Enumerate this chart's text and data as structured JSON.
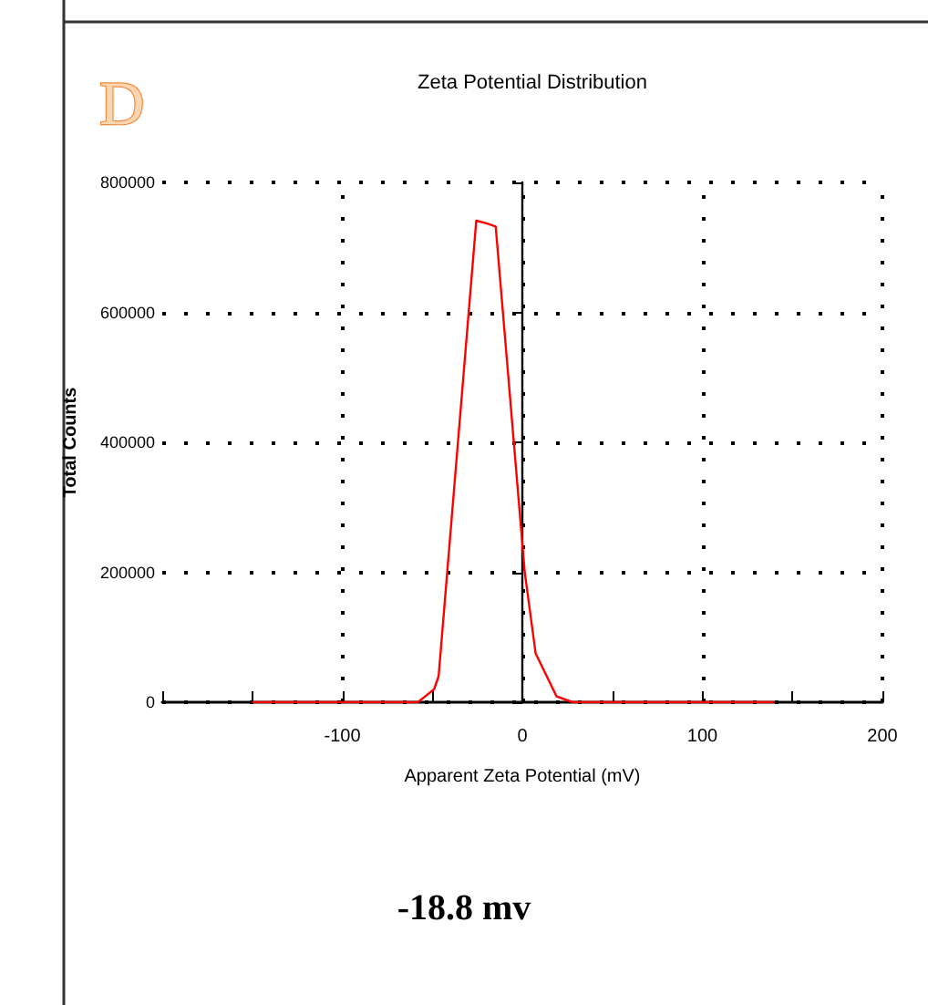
{
  "chart_data": {
    "type": "line",
    "title": "Zeta Potential Distribution",
    "xlabel": "Apparent Zeta Potential (mV)",
    "ylabel": "Total Counts",
    "annotations": [
      "D",
      "-18.8 mv"
    ],
    "x": [
      -150,
      -58,
      -49,
      -46.5,
      -25.6,
      -19.9,
      -14.8,
      1.3,
      7.4,
      19,
      28,
      140
    ],
    "series": [
      {
        "color": "#ff0000",
        "values": [
          0,
          0,
          20000,
          40000,
          741000,
          737000,
          732000,
          201000,
          75000,
          9000,
          0,
          0
        ]
      }
    ],
    "xlim": [
      -200,
      200
    ],
    "xticks": [
      {
        "value": -200,
        "label": null
      },
      {
        "value": -150,
        "label": null
      },
      -100,
      {
        "value": -50,
        "label": null
      },
      0,
      {
        "value": 50,
        "label": null
      },
      100,
      {
        "value": 150,
        "label": null
      },
      200
    ],
    "ylim": [
      0,
      800000
    ],
    "yticks": [
      0,
      200000,
      400000,
      600000,
      800000
    ],
    "grid": true,
    "marker": "none",
    "line_style": "solid"
  }
}
